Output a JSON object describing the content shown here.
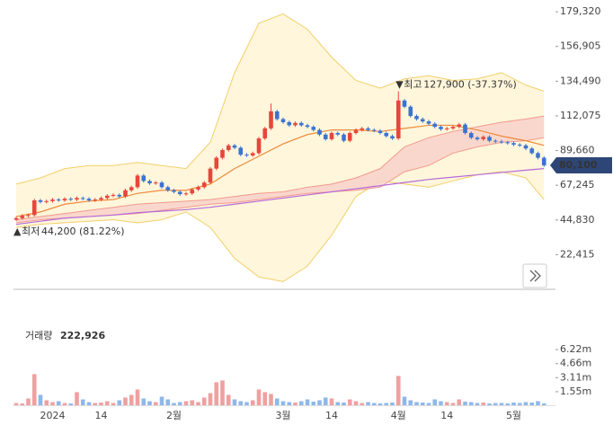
{
  "chart_data": {
    "type": "candlestick",
    "categories": [
      null,
      null,
      null,
      null,
      null,
      null,
      "2024",
      null,
      null,
      null,
      null,
      null,
      null,
      null,
      "14",
      null,
      null,
      null,
      null,
      null,
      null,
      null,
      null,
      null,
      null,
      null,
      "2월",
      null,
      null,
      null,
      null,
      null,
      null,
      null,
      null,
      null,
      null,
      null,
      null,
      null,
      null,
      null,
      null,
      null,
      "3월",
      null,
      null,
      null,
      null,
      null,
      null,
      null,
      "14",
      null,
      null,
      null,
      null,
      null,
      null,
      null,
      null,
      null,
      null,
      "4월",
      null,
      null,
      null,
      null,
      null,
      null,
      null,
      "14",
      null,
      null,
      null,
      null,
      null,
      null,
      null,
      null,
      null,
      null,
      "5월",
      null,
      null,
      null,
      null,
      null
    ],
    "open": [
      45000,
      46000,
      47500,
      48000,
      57500,
      56500,
      57000,
      58000,
      57500,
      58500,
      58000,
      59000,
      58500,
      57500,
      58000,
      59000,
      60500,
      61000,
      60000,
      64000,
      66000,
      73500,
      70000,
      68500,
      69000,
      66000,
      64000,
      63000,
      61500,
      62000,
      64500,
      66000,
      69000,
      78000,
      85000,
      90000,
      93000,
      91500,
      87000,
      86500,
      88000,
      97500,
      104000,
      115000,
      110000,
      108000,
      106000,
      107500,
      106000,
      105000,
      103000,
      100000,
      97000,
      101000,
      100000,
      96000,
      101000,
      103000,
      104000,
      103000,
      102500,
      101000,
      99000,
      97500,
      122000,
      118000,
      112000,
      110000,
      108500,
      107000,
      105000,
      103500,
      104000,
      105000,
      106500,
      101000,
      98000,
      97000,
      98500,
      96000,
      95500,
      95000,
      94500,
      93500,
      93000,
      91000,
      88000,
      85000
    ],
    "high": [
      47000,
      48500,
      49000,
      58500,
      58500,
      58000,
      59000,
      59000,
      59500,
      59500,
      60000,
      60000,
      59500,
      59000,
      60000,
      61500,
      62000,
      62000,
      65000,
      67000,
      74500,
      74500,
      71000,
      70000,
      70000,
      67000,
      65000,
      64000,
      63000,
      65500,
      67000,
      70000,
      79000,
      86000,
      91000,
      94000,
      94000,
      92500,
      88000,
      89000,
      98500,
      105000,
      120000,
      116000,
      111000,
      109000,
      108500,
      108500,
      107000,
      106000,
      104000,
      101000,
      102000,
      102000,
      101000,
      102000,
      104000,
      105000,
      105000,
      104000,
      103500,
      102000,
      100000,
      127900,
      123000,
      119000,
      113000,
      111000,
      109500,
      108000,
      106000,
      105000,
      106000,
      107500,
      107500,
      102000,
      99000,
      99500,
      99500,
      97000,
      96500,
      96000,
      95500,
      94500,
      94000,
      92000,
      89000,
      86000
    ],
    "low": [
      44200,
      45000,
      46500,
      47000,
      55500,
      55500,
      56000,
      56500,
      56500,
      57000,
      57000,
      57500,
      56500,
      56500,
      57000,
      58000,
      59500,
      59000,
      59000,
      63000,
      65000,
      69000,
      67500,
      67500,
      65000,
      63000,
      62000,
      60500,
      60500,
      61000,
      63500,
      65000,
      68000,
      77000,
      84000,
      89000,
      90500,
      86000,
      85500,
      85500,
      87000,
      96500,
      103000,
      109000,
      107000,
      105000,
      105000,
      105000,
      104000,
      102000,
      99000,
      96000,
      96000,
      99000,
      95000,
      95000,
      100000,
      102000,
      102000,
      101500,
      100000,
      98000,
      96500,
      96500,
      117000,
      111000,
      109000,
      107500,
      106000,
      104000,
      102500,
      102500,
      103000,
      104000,
      100000,
      97000,
      96000,
      96000,
      95000,
      94500,
      94000,
      93500,
      92500,
      92000,
      90000,
      87000,
      84000,
      79100
    ],
    "close": [
      46000,
      47500,
      48000,
      57500,
      56500,
      57000,
      58000,
      57500,
      58500,
      58000,
      59000,
      58500,
      57500,
      58000,
      59000,
      60500,
      61000,
      60000,
      64000,
      66000,
      73500,
      70000,
      68500,
      69000,
      66000,
      64000,
      63000,
      61500,
      62000,
      64500,
      66000,
      69000,
      78000,
      85000,
      90000,
      93000,
      91500,
      87000,
      86500,
      88000,
      97500,
      104000,
      115000,
      110000,
      108000,
      106000,
      107500,
      106000,
      105000,
      103000,
      100000,
      97000,
      101000,
      100000,
      96000,
      101000,
      103000,
      104000,
      103000,
      102500,
      101000,
      99000,
      97500,
      122000,
      118000,
      112000,
      110000,
      108500,
      107000,
      105000,
      103500,
      104000,
      105000,
      106500,
      101000,
      98000,
      97000,
      98500,
      96000,
      95500,
      95000,
      94500,
      93500,
      93000,
      91000,
      88000,
      85000,
      80100
    ],
    "up_color": "#e8453c",
    "down_color": "#3b73d1",
    "ylim": [
      0,
      182300
    ],
    "yticks": [
      {
        "value": 22415,
        "label": "22,415"
      },
      {
        "value": 44830,
        "label": "44,830"
      },
      {
        "value": 67245,
        "label": "67,245"
      },
      {
        "value": 89660,
        "label": "89,660"
      },
      {
        "value": 112075,
        "label": "112,075"
      },
      {
        "value": 134490,
        "label": "134,490"
      },
      {
        "value": 156905,
        "label": "156,905"
      },
      {
        "value": 179320,
        "label": "179,320"
      }
    ],
    "grid": false,
    "overlay_x": [
      0,
      4,
      8,
      12,
      16,
      20,
      24,
      28,
      32,
      36,
      40,
      44,
      48,
      52,
      56,
      60,
      64,
      68,
      72,
      76,
      80,
      84,
      87
    ],
    "bollinger": {
      "color": "#f3cf6a",
      "fill": "#fff4d2",
      "upper": [
        68000,
        72000,
        78000,
        80000,
        80000,
        82000,
        80000,
        78000,
        95000,
        140000,
        172000,
        178000,
        168000,
        150000,
        135000,
        130000,
        136000,
        138000,
        135000,
        136000,
        140000,
        132000,
        128000
      ],
      "lower": [
        40000,
        42000,
        43000,
        44000,
        45000,
        43000,
        45000,
        50000,
        40000,
        20000,
        8000,
        5000,
        15000,
        35000,
        60000,
        70000,
        68000,
        66000,
        70000,
        74000,
        76000,
        72000,
        58000
      ]
    },
    "cloud": {
      "color": "#f29a8e",
      "fill": "#f9cfc8",
      "upper": [
        45000,
        47000,
        49000,
        51000,
        53000,
        55000,
        56000,
        57000,
        58000,
        60000,
        62000,
        63000,
        66000,
        68000,
        72000,
        78000,
        92000,
        98000,
        102000,
        105000,
        108000,
        110000,
        112000
      ],
      "lower": [
        43000,
        45000,
        46000,
        47000,
        48000,
        49000,
        51000,
        53000,
        55000,
        56000,
        58000,
        60000,
        62000,
        63000,
        64000,
        66000,
        76000,
        80000,
        88000,
        92000,
        95000,
        96000,
        98000
      ]
    },
    "lines": [
      {
        "color": "#ef8a3c",
        "values": [
          47000,
          50000,
          55000,
          57000,
          58000,
          62000,
          64000,
          64000,
          68000,
          78000,
          86000,
          94000,
          100000,
          103000,
          103000,
          102000,
          104000,
          106000,
          106000,
          103000,
          99000,
          96000,
          93000
        ]
      },
      {
        "color": "#b46ad8",
        "values": [
          42000,
          44000,
          46000,
          47000,
          48000,
          49500,
          50500,
          51500,
          53000,
          55000,
          57000,
          59000,
          61000,
          63000,
          65000,
          67000,
          69000,
          71000,
          72500,
          74000,
          75500,
          77000,
          78000
        ]
      }
    ],
    "annotations": {
      "high_label": "최고",
      "high_text": "127,900 (-37.37%)",
      "low_label": "최저",
      "low_text": "44,200 (81.22%)",
      "last_text": "80,100"
    },
    "volume": {
      "title": "거래량",
      "title_value": "222,926",
      "values": [
        300000,
        250000,
        800000,
        3500000,
        1200000,
        600000,
        400000,
        500000,
        300000,
        250000,
        1500000,
        700000,
        400000,
        300000,
        350000,
        500000,
        300000,
        600000,
        900000,
        1200000,
        1800000,
        800000,
        500000,
        400000,
        1000000,
        700000,
        300000,
        400000,
        500000,
        600000,
        400000,
        900000,
        1400000,
        2600000,
        2800000,
        1200000,
        700000,
        500000,
        400000,
        600000,
        1800000,
        1500000,
        1300000,
        800000,
        500000,
        400000,
        350000,
        500000,
        700000,
        450000,
        600000,
        900000,
        800000,
        400000,
        350000,
        700000,
        500000,
        300000,
        400000,
        300000,
        250000,
        300000,
        350000,
        3300000,
        1000000,
        600000,
        400000,
        350000,
        300000,
        700000,
        500000,
        400000,
        300000,
        700000,
        450000,
        400000,
        300000,
        350000,
        250000,
        300000,
        300000,
        250000,
        350000,
        300000,
        400000,
        350000,
        500000,
        250000
      ],
      "ylim": [
        0,
        8620000
      ],
      "yticks": [
        {
          "value": 1550000,
          "label": "1.55m"
        },
        {
          "value": 3110000,
          "label": "3.11m"
        },
        {
          "value": 4660000,
          "label": "4.66m"
        },
        {
          "value": 6220000,
          "label": "6.22m"
        }
      ],
      "up_color": "#f0a0a0",
      "down_color": "#8fb8ea"
    }
  }
}
